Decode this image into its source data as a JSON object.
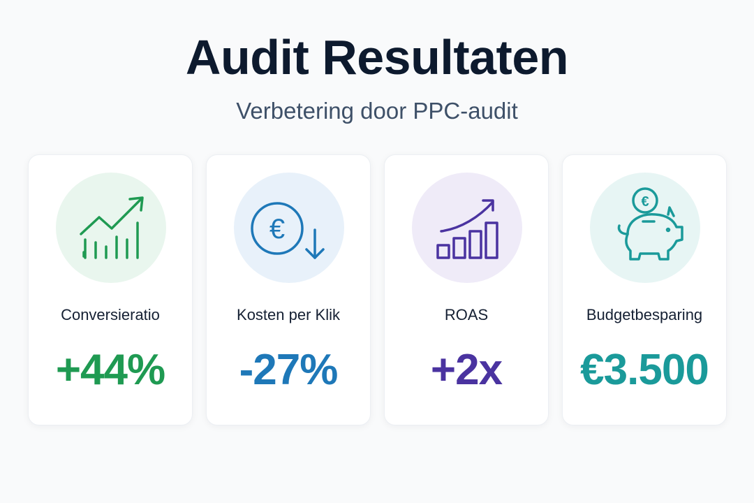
{
  "header": {
    "title": "Audit Resultaten",
    "subtitle": "Verbetering door PPC-audit"
  },
  "cards": [
    {
      "label": "Conversieratio",
      "value": "+44%",
      "icon": "growth-chart-icon",
      "color": "#1f9a52",
      "bg": "#e9f6ee"
    },
    {
      "label": "Kosten per Klik",
      "value": "-27%",
      "icon": "euro-down-icon",
      "color": "#1e78b8",
      "bg": "#e8f1fa"
    },
    {
      "label": "ROAS",
      "value": "+2x",
      "icon": "bar-chart-up-icon",
      "color": "#4a33a0",
      "bg": "#efebf8"
    },
    {
      "label": "Budgetbesparing",
      "value": "€3.500",
      "icon": "piggy-bank-icon",
      "color": "#1a9a9a",
      "bg": "#e7f5f4"
    }
  ],
  "icon_glyphs": {
    "euro": "€"
  }
}
